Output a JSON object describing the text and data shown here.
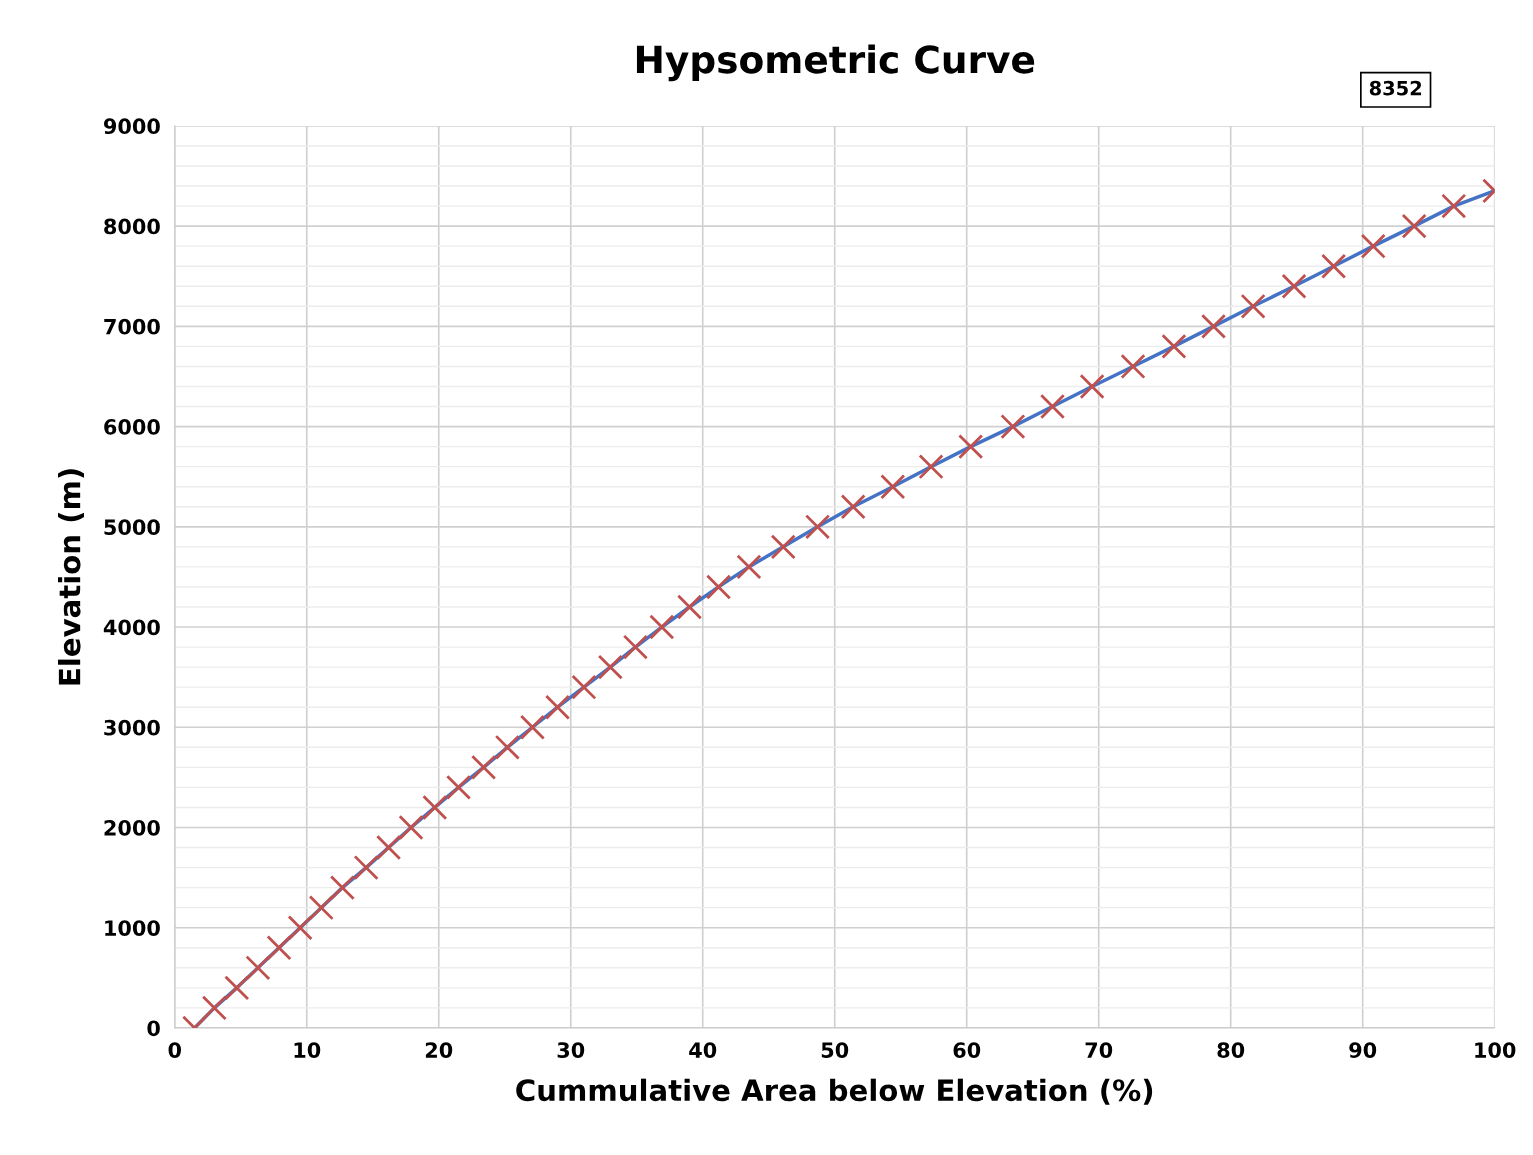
{
  "chart_data": {
    "type": "line",
    "title": "Hypsometric Curve",
    "xlabel": "Cummulative Area below Elevation (%)",
    "ylabel": "Elevation (m)",
    "annotations": [
      "8352"
    ],
    "x": [
      1.5,
      3.0,
      4.7,
      6.3,
      7.9,
      9.5,
      11.1,
      12.7,
      14.5,
      16.2,
      17.9,
      19.7,
      21.5,
      23.4,
      25.2,
      27.1,
      29.0,
      31.0,
      33.0,
      34.9,
      36.9,
      39.0,
      41.2,
      43.5,
      46.1,
      48.7,
      51.4,
      54.4,
      57.3,
      60.3,
      63.5,
      66.5,
      69.5,
      72.6,
      75.7,
      78.7,
      81.7,
      84.8,
      87.8,
      90.8,
      93.9,
      96.9,
      100
    ],
    "series": [
      {
        "color": "#4472c4",
        "marker": "cross",
        "colors": [
          "#c0504d",
          "#c0504d",
          "#c0504d",
          "#c0504d",
          "#c0504d",
          "#c0504d",
          "#c0504d",
          "#c0504d",
          "#c0504d",
          "#c0504d",
          "#c0504d",
          "#c0504d",
          "#c0504d",
          "#c0504d",
          "#c0504d",
          "#c0504d",
          "#c0504d",
          "#c0504d",
          "#c0504d",
          "#c0504d",
          "#c0504d",
          "#c0504d",
          "#c0504d",
          "#c0504d",
          "#c0504d",
          "#c0504d",
          "#c0504d",
          "#c0504d",
          "#c0504d",
          "#c0504d",
          "#c0504d",
          "#c0504d",
          "#c0504d",
          "#c0504d",
          "#c0504d",
          "#c0504d",
          "#c0504d",
          "#c0504d",
          "#c0504d",
          "#c0504d",
          "#c0504d",
          "#c0504d",
          "#c0504d"
        ],
        "values": [
          0,
          200,
          400,
          600,
          800,
          1000,
          1200,
          1400,
          1600,
          1800,
          2000,
          2200,
          2400,
          2600,
          2800,
          3000,
          3200,
          3400,
          3600,
          3800,
          4000,
          4200,
          4400,
          4600,
          4800,
          5000,
          5200,
          5400,
          5600,
          5800,
          6000,
          6200,
          6400,
          6600,
          6800,
          7000,
          7200,
          7400,
          7600,
          7800,
          8000,
          8200,
          8352
        ]
      }
    ],
    "xlim": [
      0,
      100
    ],
    "xticks": [
      0,
      10,
      20,
      30,
      40,
      50,
      60,
      70,
      80,
      90,
      100
    ],
    "ylim": [
      0,
      9000
    ],
    "yticks": [
      0,
      1000,
      2000,
      3000,
      4000,
      5000,
      6000,
      7000,
      8000,
      9000
    ],
    "grid": true,
    "legend": false
  }
}
